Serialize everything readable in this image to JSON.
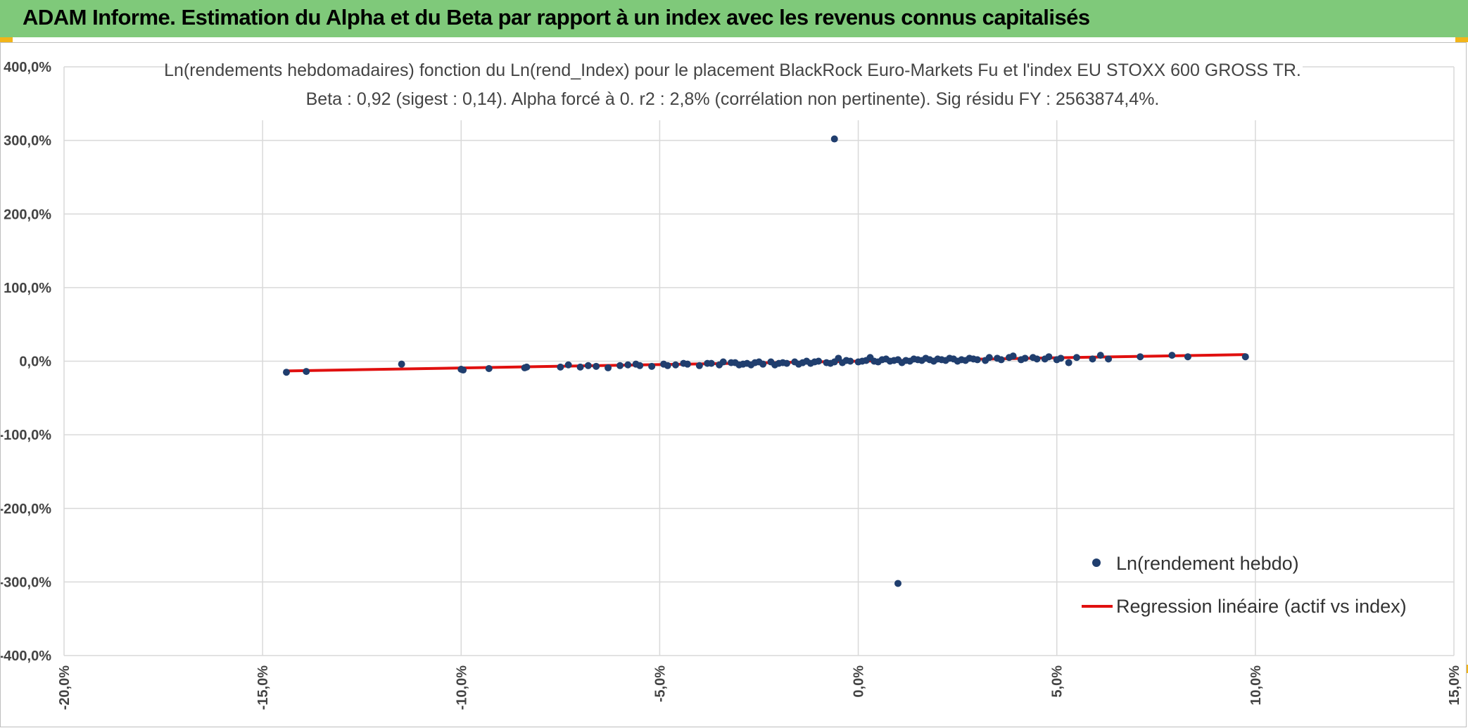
{
  "banner": {
    "title": "ADAM Informe. Estimation du Alpha et du Beta par rapport à un index avec les revenus connus capitalisés"
  },
  "colors": {
    "banner": "#7fc97a",
    "accent_corner": "#f2b51a",
    "points": "#203e6e",
    "regression": "#e0100f",
    "grid": "#d9d9d9"
  },
  "chart_data": {
    "type": "scatter",
    "title": "Ln(rendements hebdomadaires) fonction du Ln(rend_Index) pour le placement BlackRock Euro-Markets Fu et l'index EU STOXX 600 GROSS TR.",
    "subtitle": "Beta : 0,92 (sigest : 0,14). Alpha forcé à 0. r2 : 2,8% (corrélation non pertinente). Sig résidu FY : 2563874,4%.",
    "xlim": [
      -20,
      15
    ],
    "ylim": [
      -400,
      400
    ],
    "x_ticks": [
      "-20,0%",
      "-15,0%",
      "-10,0%",
      "-5,0%",
      "0,0%",
      "5,0%",
      "10,0%",
      "15,0%"
    ],
    "y_ticks": [
      "400,0%",
      "300,0%",
      "200,0%",
      "100,0%",
      "0,0%",
      "-100,0%",
      "-200,0%",
      "-300,0%",
      "-400,0%"
    ],
    "grid": true,
    "legend_position": "bottom-right",
    "series": [
      {
        "name": "Ln(rendement hebdo)",
        "kind": "points",
        "points": [
          [
            -14.4,
            -15
          ],
          [
            -13.9,
            -14
          ],
          [
            -11.5,
            -4
          ],
          [
            -10.0,
            -11
          ],
          [
            -9.95,
            -12
          ],
          [
            -9.3,
            -10
          ],
          [
            -8.4,
            -9
          ],
          [
            -8.35,
            -8
          ],
          [
            -7.5,
            -8
          ],
          [
            -7.3,
            -5
          ],
          [
            -7.0,
            -8
          ],
          [
            -6.6,
            -7
          ],
          [
            -6.3,
            -9
          ],
          [
            -6.0,
            -6
          ],
          [
            -5.8,
            -5
          ],
          [
            -5.5,
            -6
          ],
          [
            -5.2,
            -7
          ],
          [
            -4.9,
            -4
          ],
          [
            -4.6,
            -5
          ],
          [
            -4.3,
            -4
          ],
          [
            -4.0,
            -6
          ],
          [
            -3.7,
            -3
          ],
          [
            -3.5,
            -5
          ],
          [
            -3.2,
            -2
          ],
          [
            -3.0,
            -5
          ],
          [
            -2.8,
            -3
          ],
          [
            -2.6,
            -2
          ],
          [
            -2.4,
            -4
          ],
          [
            -2.2,
            -1
          ],
          [
            -2.0,
            -3
          ],
          [
            -1.8,
            -3
          ],
          [
            -1.6,
            -1
          ],
          [
            -1.4,
            -2
          ],
          [
            -1.2,
            -3
          ],
          [
            -1.0,
            0
          ],
          [
            -0.8,
            -2
          ],
          [
            -0.6,
            -1
          ],
          [
            -0.4,
            -2
          ],
          [
            -0.2,
            0
          ],
          [
            0.0,
            -1
          ],
          [
            0.2,
            1
          ],
          [
            0.4,
            0
          ],
          [
            0.6,
            2
          ],
          [
            0.8,
            0
          ],
          [
            1.0,
            2
          ],
          [
            1.2,
            1
          ],
          [
            1.4,
            3
          ],
          [
            1.6,
            1
          ],
          [
            1.8,
            2
          ],
          [
            2.0,
            3
          ],
          [
            2.2,
            1
          ],
          [
            2.4,
            3
          ],
          [
            2.6,
            2
          ],
          [
            2.8,
            4
          ],
          [
            3.0,
            2
          ],
          [
            3.3,
            5
          ],
          [
            3.6,
            2
          ],
          [
            3.9,
            7
          ],
          [
            4.2,
            4
          ],
          [
            4.5,
            3
          ],
          [
            4.8,
            6
          ],
          [
            5.1,
            4
          ],
          [
            5.3,
            -2
          ],
          [
            5.5,
            5
          ],
          [
            5.9,
            3
          ],
          [
            6.1,
            8
          ],
          [
            6.3,
            3
          ],
          [
            7.1,
            6
          ],
          [
            7.9,
            8
          ],
          [
            8.3,
            6
          ],
          [
            9.75,
            6
          ],
          [
            -0.6,
            302
          ],
          [
            1.0,
            -302
          ],
          [
            -3.8,
            -3
          ],
          [
            -3.4,
            -1
          ],
          [
            -2.9,
            -4
          ],
          [
            -2.5,
            -1
          ],
          [
            -1.9,
            -2
          ],
          [
            -1.5,
            -4
          ],
          [
            -1.1,
            -1
          ],
          [
            -0.7,
            -3
          ],
          [
            -0.3,
            1
          ],
          [
            0.1,
            0
          ],
          [
            0.5,
            -1
          ],
          [
            0.9,
            1
          ],
          [
            1.3,
            0
          ],
          [
            1.7,
            4
          ],
          [
            2.1,
            2
          ],
          [
            2.5,
            0
          ],
          [
            2.9,
            3
          ],
          [
            3.2,
            1
          ],
          [
            3.5,
            4
          ],
          [
            3.8,
            5
          ],
          [
            4.1,
            2
          ],
          [
            4.4,
            5
          ],
          [
            4.7,
            3
          ],
          [
            5.0,
            2
          ],
          [
            -4.8,
            -6
          ],
          [
            -4.4,
            -3
          ],
          [
            -5.6,
            -4
          ],
          [
            -6.8,
            -6
          ],
          [
            -0.5,
            4
          ],
          [
            0.3,
            5
          ],
          [
            1.1,
            -2
          ],
          [
            1.5,
            2
          ],
          [
            1.9,
            0
          ],
          [
            2.3,
            4
          ],
          [
            2.7,
            1
          ],
          [
            -2.1,
            -5
          ],
          [
            -1.3,
            0
          ],
          [
            -3.1,
            -2
          ],
          [
            -2.7,
            -5
          ],
          [
            0.7,
            3
          ]
        ]
      },
      {
        "name": "Regression linéaire (actif vs index)",
        "kind": "line",
        "points": [
          [
            -14.4,
            -13.25
          ],
          [
            9.75,
            8.97
          ]
        ]
      }
    ]
  }
}
